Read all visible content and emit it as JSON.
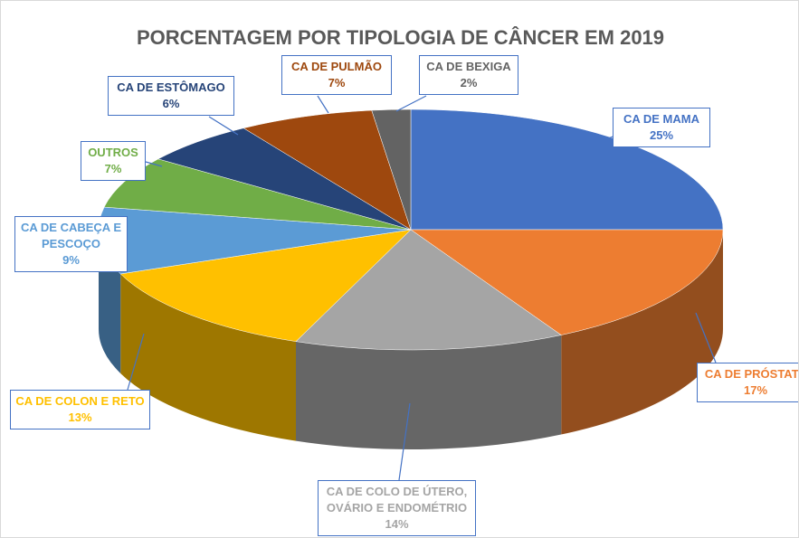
{
  "chart_data": {
    "type": "pie3d",
    "title": "PORCENTAGEM POR TIPOLOGIA DE CÂNCER EM 2019",
    "categories": [
      "CA DE MAMA",
      "CA DE PRÓSTATA",
      "CA DE COLO DE ÚTERO, OVÁRIO E ENDOMÉTRIO",
      "CA DE COLON E RETO",
      "CA DE CABEÇA E PESCOÇO",
      "OUTROS",
      "CA DE ESTÔMAGO",
      "CA DE PULMÃO",
      "CA DE BEXIGA"
    ],
    "values": [
      25,
      17,
      14,
      13,
      9,
      7,
      6,
      7,
      2
    ],
    "value_labels": [
      "25%",
      "17%",
      "14%",
      "13%",
      "9%",
      "7%",
      "6%",
      "7%",
      "2%"
    ],
    "colors": [
      "#4472c4",
      "#ed7d31",
      "#a5a5a5",
      "#ffc000",
      "#5b9bd5",
      "#70ad47",
      "#264478",
      "#9e480e",
      "#636363"
    ]
  }
}
